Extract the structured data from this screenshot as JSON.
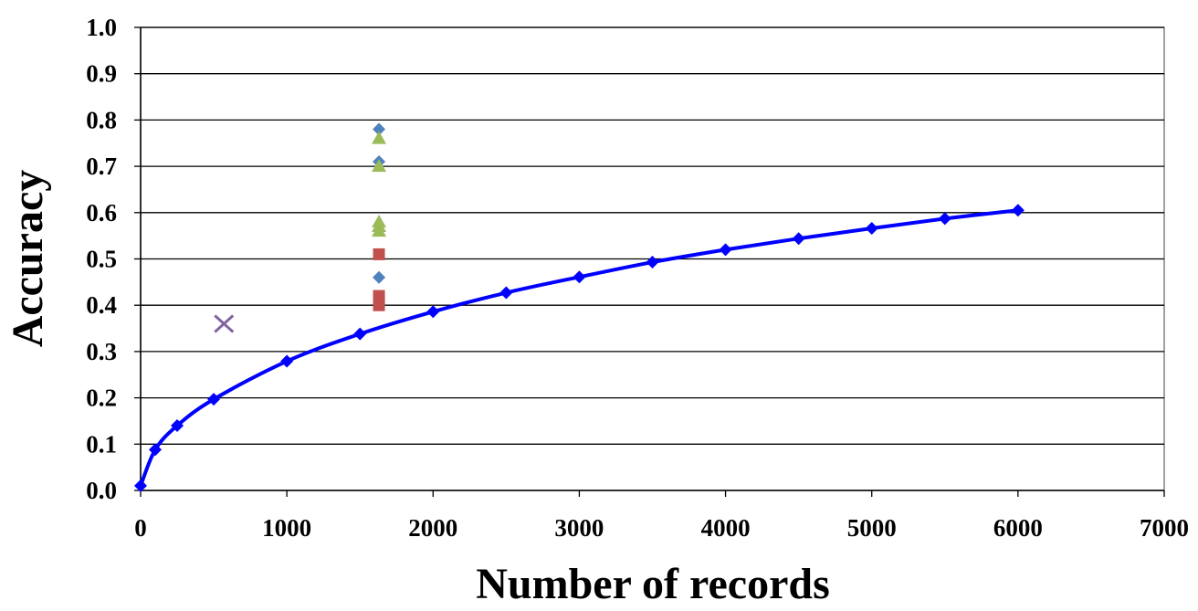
{
  "chart_data": {
    "type": "scatter",
    "title": "",
    "xlabel": "Number of records",
    "ylabel": "Accuracy",
    "xlim": [
      0,
      7000
    ],
    "ylim": [
      0.0,
      1.0
    ],
    "x_ticks": [
      "0",
      "1000",
      "2000",
      "3000",
      "4000",
      "5000",
      "6000",
      "7000"
    ],
    "y_ticks": [
      "0.0",
      "0.1",
      "0.2",
      "0.3",
      "0.4",
      "0.5",
      "0.6",
      "0.7",
      "0.8",
      "0.9",
      "1.0"
    ],
    "grid": "horizontal",
    "legend": "none",
    "series": [
      {
        "style": "smooth-line-diamond",
        "color": "#0000ff",
        "points": [
          [
            0,
            0.01
          ],
          [
            100,
            0.088
          ],
          [
            250,
            0.14
          ],
          [
            500,
            0.197
          ],
          [
            1000,
            0.279
          ],
          [
            1500,
            0.338
          ],
          [
            2000,
            0.386
          ],
          [
            2500,
            0.427
          ],
          [
            3000,
            0.461
          ],
          [
            3500,
            0.493
          ],
          [
            4000,
            0.52
          ],
          [
            4500,
            0.544
          ],
          [
            5000,
            0.566
          ],
          [
            5500,
            0.587
          ],
          [
            6000,
            0.605
          ]
        ]
      },
      {
        "style": "diamond",
        "color": "#4f81bd",
        "points": [
          [
            1630,
            0.78
          ],
          [
            1630,
            0.71
          ],
          [
            1630,
            0.46
          ]
        ]
      },
      {
        "style": "triangle",
        "color": "#9bbb59",
        "points": [
          [
            1630,
            0.76
          ],
          [
            1630,
            0.7
          ],
          [
            1630,
            0.58
          ],
          [
            1630,
            0.57
          ],
          [
            1630,
            0.56
          ]
        ]
      },
      {
        "style": "square",
        "color": "#c0504d",
        "points": [
          [
            1630,
            0.51
          ],
          [
            1630,
            0.42
          ],
          [
            1630,
            0.41
          ],
          [
            1630,
            0.4
          ]
        ]
      },
      {
        "style": "x",
        "color": "#8064a2",
        "points": [
          [
            570,
            0.36
          ]
        ]
      }
    ]
  }
}
